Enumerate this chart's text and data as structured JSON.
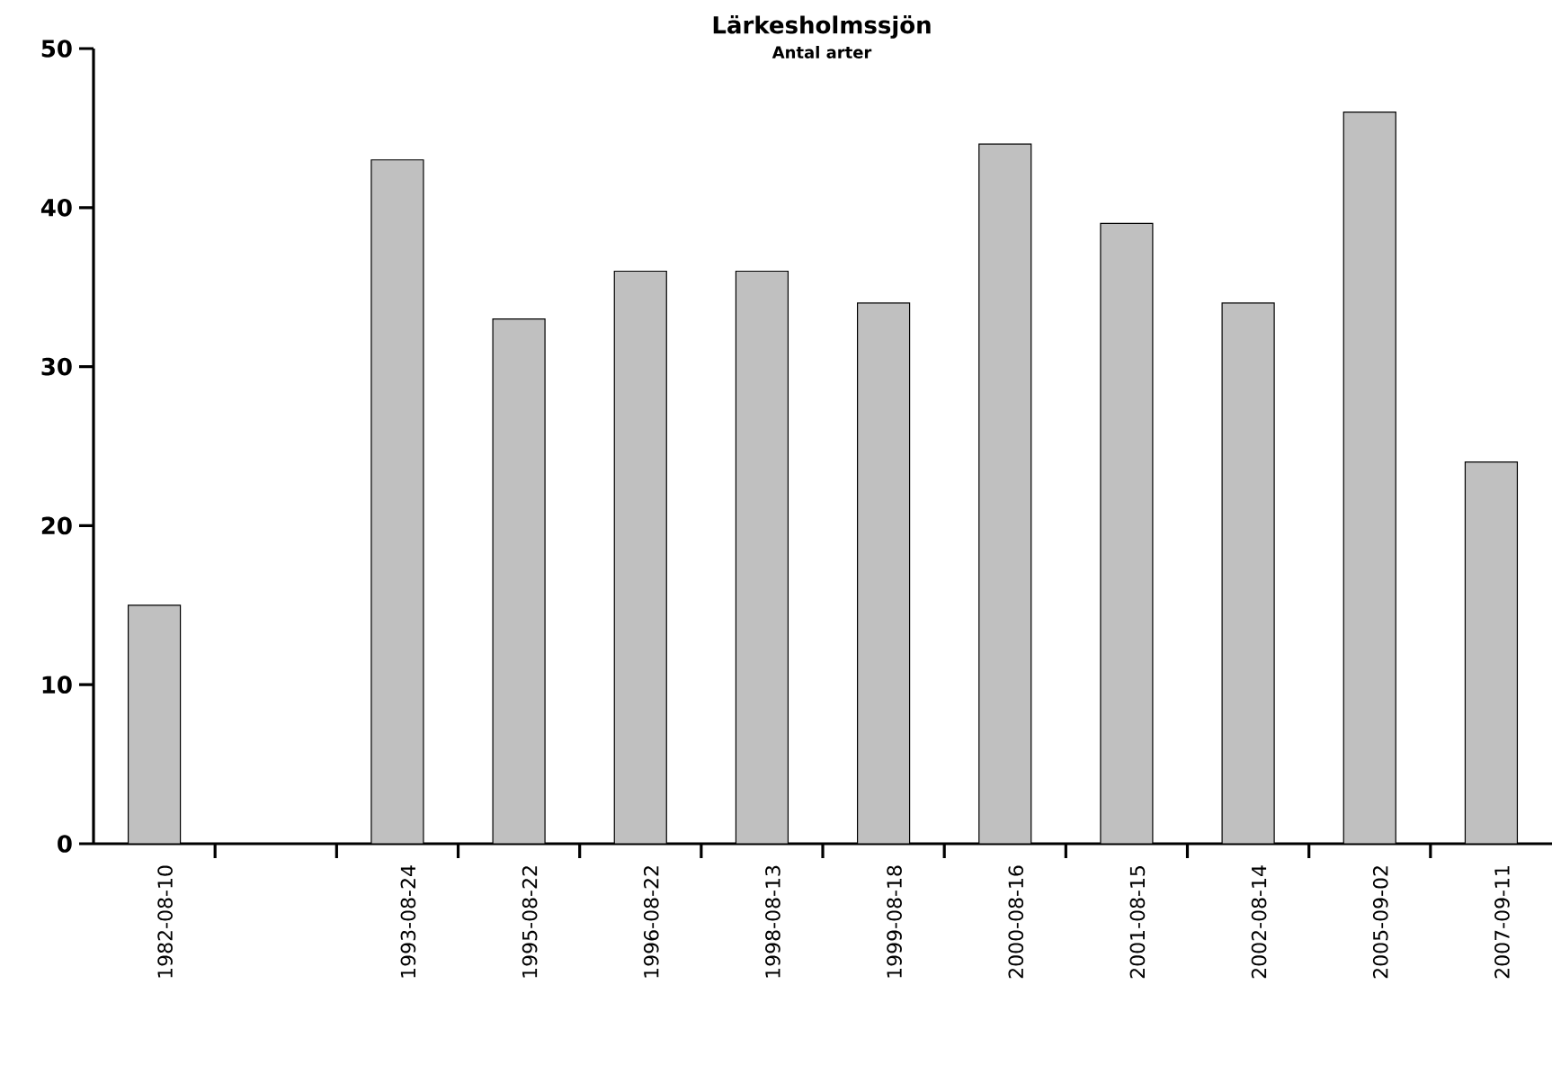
{
  "chart_data": {
    "type": "bar",
    "title": "Lärkesholmssjön",
    "subtitle": "Antal arter",
    "categories": [
      "1982-08-10",
      null,
      "1993-08-24",
      "1995-08-22",
      "1996-08-22",
      "1998-08-13",
      "1999-08-18",
      "2000-08-16",
      "2001-08-15",
      "2002-08-14",
      "2005-09-02",
      "2007-09-11"
    ],
    "values": [
      15,
      null,
      43,
      33,
      36,
      36,
      34,
      44,
      39,
      34,
      46,
      24
    ],
    "color": "#c0c0c0",
    "ylim": [
      0,
      50
    ],
    "yticks": [
      0,
      10,
      20,
      30,
      40,
      50
    ]
  }
}
